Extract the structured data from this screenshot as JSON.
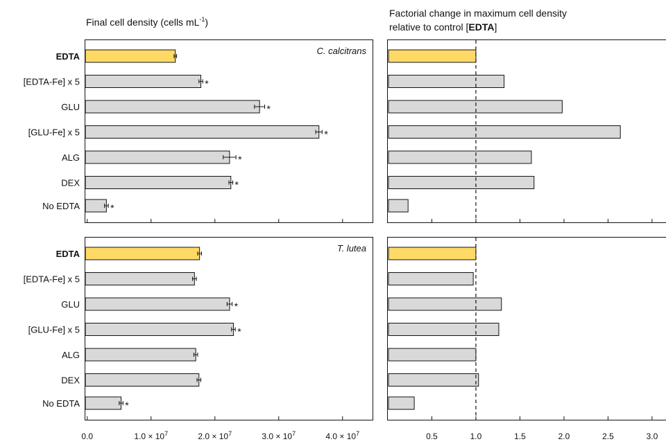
{
  "headers": {
    "left": "Final cell density (cells mL",
    "left_sup": "-1",
    "left_close": ")",
    "right_line1": "Factorial change in maximum cell density",
    "right_line2_pre": "relative to control [",
    "right_line2_bold": "EDTA",
    "right_line2_post": "]"
  },
  "chart_data": [
    {
      "type": "bar",
      "orientation": "horizontal",
      "panel": "C. calcitrans final cell density",
      "species": "C. calcitrans",
      "categories": [
        "EDTA",
        "[EDTA-Fe] x 5",
        "GLU",
        "[GLU-Fe] x 5",
        "ALG",
        "DEX",
        "No EDTA"
      ],
      "values": [
        13800000,
        17800000,
        27000000,
        36300000,
        22300000,
        22500000,
        3000000
      ],
      "errors": [
        200000,
        300000,
        800000,
        500000,
        1000000,
        300000,
        300000
      ],
      "significant": [
        false,
        true,
        true,
        true,
        true,
        true,
        true
      ],
      "xlim": [
        -300000,
        44700000
      ],
      "xticks": [
        "0.0",
        "1.0 × 10",
        "2.0 × 10",
        "3.0 × 10",
        "4.0 × 10"
      ],
      "xtick_values": [
        0,
        10000000,
        20000000,
        30000000,
        40000000
      ],
      "xtick_exp": [
        "",
        "7",
        "7",
        "7",
        "7"
      ],
      "control_color": "#FFD966",
      "bar_color": "#D9D9D9"
    },
    {
      "type": "bar",
      "orientation": "horizontal",
      "panel": "C. calcitrans factorial change",
      "categories": [
        "EDTA",
        "[EDTA-Fe] x 5",
        "GLU",
        "[GLU-Fe] x 5",
        "ALG",
        "DEX",
        "No EDTA"
      ],
      "values": [
        1.0,
        1.32,
        1.98,
        2.64,
        1.63,
        1.66,
        0.23
      ],
      "xlim": [
        0,
        3.3
      ],
      "xticks": [
        "0.5",
        "1.0",
        "1.5",
        "2.0",
        "2.5",
        "3.0"
      ],
      "xtick_values": [
        0.5,
        1.0,
        1.5,
        2.0,
        2.5,
        3.0
      ],
      "reference_line": 1.0
    },
    {
      "type": "bar",
      "orientation": "horizontal",
      "panel": "T. lutea final cell density",
      "species": "T. lutea",
      "categories": [
        "EDTA",
        "[EDTA-Fe] x 5",
        "GLU",
        "[GLU-Fe] x 5",
        "ALG",
        "DEX",
        "No EDTA"
      ],
      "values": [
        17600000,
        16800000,
        22300000,
        22900000,
        17000000,
        17500000,
        5300000
      ],
      "errors": [
        300000,
        300000,
        400000,
        300000,
        300000,
        300000,
        300000
      ],
      "significant": [
        false,
        false,
        true,
        true,
        false,
        false,
        true
      ],
      "xlim": [
        -300000,
        44700000
      ]
    },
    {
      "type": "bar",
      "orientation": "horizontal",
      "panel": "T. lutea factorial change",
      "categories": [
        "EDTA",
        "[EDTA-Fe] x 5",
        "GLU",
        "[GLU-Fe] x 5",
        "ALG",
        "DEX",
        "No EDTA"
      ],
      "values": [
        1.0,
        0.97,
        1.29,
        1.26,
        1.0,
        1.03,
        0.3
      ],
      "xlim": [
        0,
        3.3
      ],
      "reference_line": 1.0
    }
  ]
}
